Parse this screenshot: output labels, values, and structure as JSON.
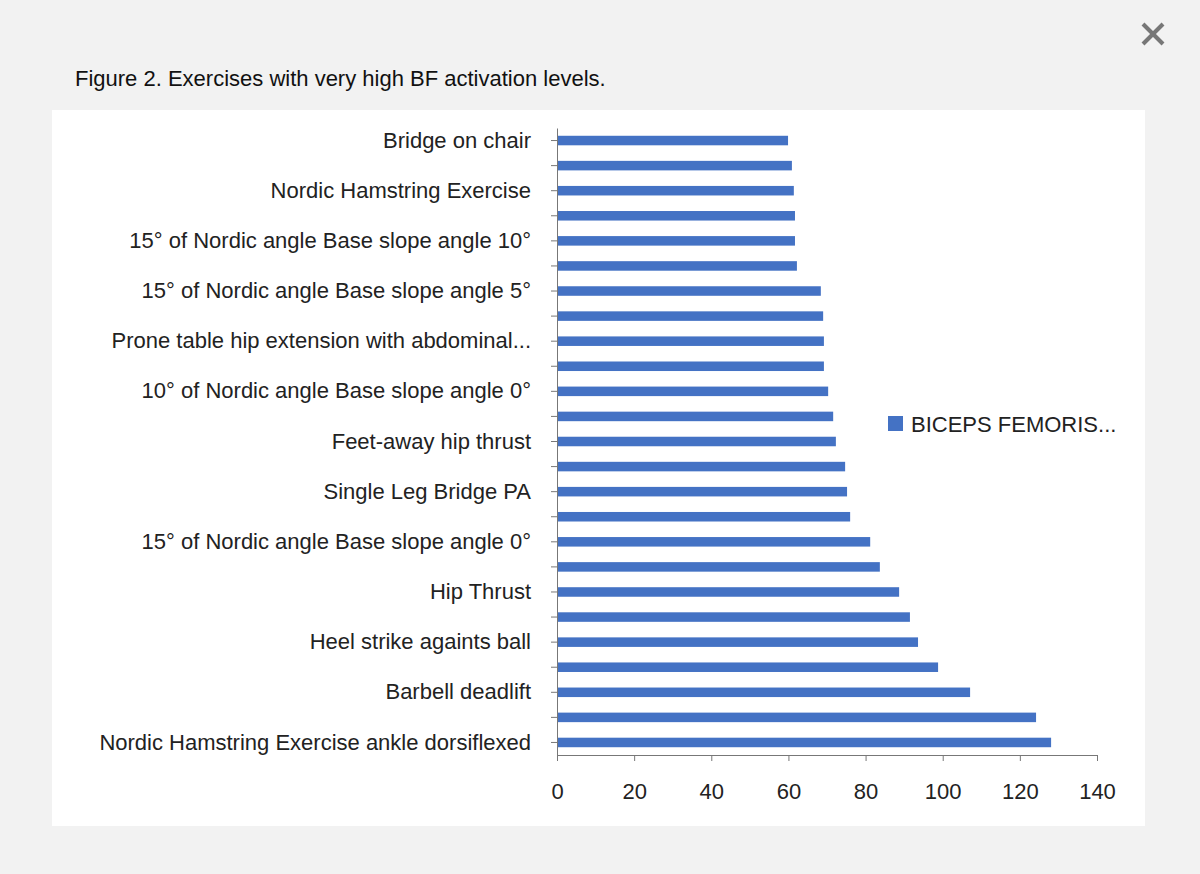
{
  "chart_data": {
    "type": "bar",
    "title": "Figure 2. Exercises with very high BF activation levels.",
    "orientation": "horizontal",
    "categories": [
      "Bridge on chair",
      null,
      "Nordic Hamstring Exercise",
      null,
      "15° of Nordic angle  Base slope angle 10°",
      null,
      "15° of Nordic angle Base slope angle 5°",
      null,
      "Prone table hip extension with abdominal...",
      null,
      "10° of Nordic angle Base slope angle 0°",
      null,
      "Feet-away hip thrust",
      null,
      "Single Leg Bridge PA",
      null,
      "15° of Nordic angle Base slope angle 0°",
      null,
      "Hip Thrust",
      null,
      "Heel strike againts ball",
      null,
      "Barbell deadlift",
      null,
      "Nordic Hamstring Exercise ankle dorsiflexed"
    ],
    "series": [
      {
        "name": "BICEPS FEMORIS...",
        "color": "#4472c4",
        "values": [
          59.9,
          60.9,
          61.4,
          61.7,
          61.7,
          62.2,
          68.4,
          69.0,
          69.2,
          69.2,
          70.3,
          71.6,
          72.3,
          74.7,
          75.2,
          76.0,
          81.2,
          83.7,
          88.7,
          91.5,
          93.6,
          98.8,
          107.1,
          124.2,
          128.1
        ]
      }
    ],
    "xlim": [
      0,
      140
    ],
    "xticks": [
      0,
      20,
      40,
      60,
      80,
      100,
      120,
      140
    ],
    "legend": "right",
    "grid": false
  }
}
